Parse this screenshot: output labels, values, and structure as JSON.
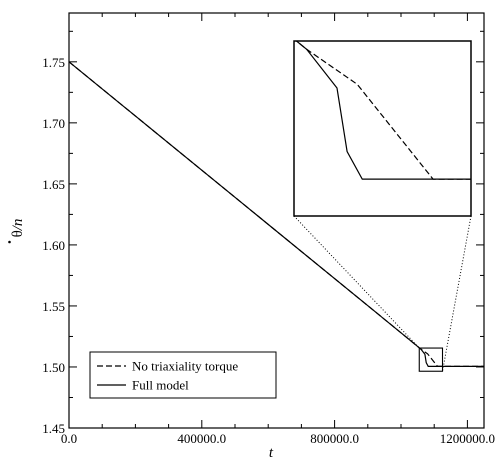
{
  "chart_data": {
    "type": "line",
    "title": "",
    "xlabel": "t",
    "ylabel_main": "θ",
    "ylabel_rest": "/n",
    "xlim": [
      0,
      1250000
    ],
    "ylim": [
      1.45,
      1.79
    ],
    "x_ticks": [
      0,
      400000,
      800000,
      1200000
    ],
    "x_tick_labels": [
      "0.0",
      "400000.0",
      "800000.0",
      "1200000.0"
    ],
    "y_ticks": [
      1.45,
      1.5,
      1.55,
      1.6,
      1.65,
      1.7,
      1.75
    ],
    "y_tick_labels": [
      "1.45",
      "1.50",
      "1.55",
      "1.60",
      "1.65",
      "1.70",
      "1.75"
    ],
    "grid": false,
    "legend_position": "bottom-left",
    "series": [
      {
        "name": "No triaxiality torque",
        "style": "dashed",
        "x": [
          0,
          1000000,
          1060000,
          1080000,
          1110000,
          1250000
        ],
        "y": [
          1.75,
          1.528,
          1.5146,
          1.5108,
          1.5005,
          1.5005
        ]
      },
      {
        "name": "Full model",
        "style": "solid",
        "x": [
          0,
          1000000,
          1060000,
          1072000,
          1076000,
          1082000,
          1250000
        ],
        "y": [
          1.75,
          1.528,
          1.5146,
          1.5104,
          1.5035,
          1.5005,
          1.5005
        ]
      }
    ],
    "inset": {
      "xlim": [
        1055000,
        1125000
      ],
      "ylim": [
        1.4965,
        1.5155
      ],
      "position": "top-right"
    }
  }
}
